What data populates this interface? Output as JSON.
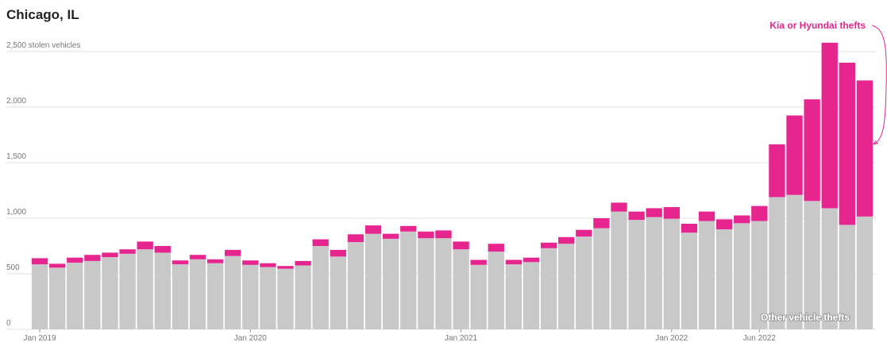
{
  "chart_data": {
    "type": "stacked_bar",
    "title": "Chicago, IL",
    "categories": [
      "Jan 2019",
      null,
      null,
      null,
      null,
      null,
      null,
      null,
      null,
      null,
      null,
      null,
      "Jan 2020",
      null,
      null,
      null,
      null,
      null,
      null,
      null,
      null,
      null,
      null,
      null,
      "Jan 2021",
      null,
      null,
      null,
      null,
      null,
      null,
      null,
      null,
      null,
      null,
      null,
      "Jan 2022",
      null,
      null,
      null,
      null,
      "Jun 2022",
      null,
      null,
      null,
      null,
      null,
      null
    ],
    "series": [
      {
        "name": "Other vehicle thefts",
        "color": "#c8c8c8",
        "values": [
          585,
          555,
          600,
          615,
          650,
          680,
          720,
          690,
          585,
          630,
          595,
          660,
          580,
          560,
          545,
          575,
          750,
          655,
          785,
          860,
          815,
          880,
          820,
          820,
          720,
          580,
          700,
          585,
          605,
          730,
          770,
          835,
          910,
          1060,
          985,
          1010,
          995,
          870,
          975,
          900,
          955,
          975,
          1190,
          1210,
          1155,
          1090,
          940,
          1015
        ]
      },
      {
        "name": "Kia or Hyundai thefts",
        "color": "#e6258f",
        "values": [
          55,
          35,
          45,
          55,
          40,
          40,
          70,
          60,
          35,
          40,
          35,
          55,
          40,
          35,
          25,
          40,
          60,
          60,
          70,
          75,
          45,
          50,
          60,
          70,
          70,
          45,
          70,
          40,
          40,
          50,
          60,
          60,
          90,
          80,
          75,
          80,
          105,
          80,
          85,
          90,
          70,
          135,
          475,
          715,
          915,
          1490,
          1460,
          1225
        ]
      }
    ],
    "ylim": [
      0,
      2500
    ],
    "yticks": [
      0,
      500,
      {
        "value": 1000,
        "label": "1,000"
      },
      {
        "value": 1500,
        "label": "1,500"
      },
      {
        "value": 2000,
        "label": "2,000"
      },
      {
        "value": 2500,
        "label": "2,500 stolen vehicles"
      }
    ],
    "grid": true
  }
}
